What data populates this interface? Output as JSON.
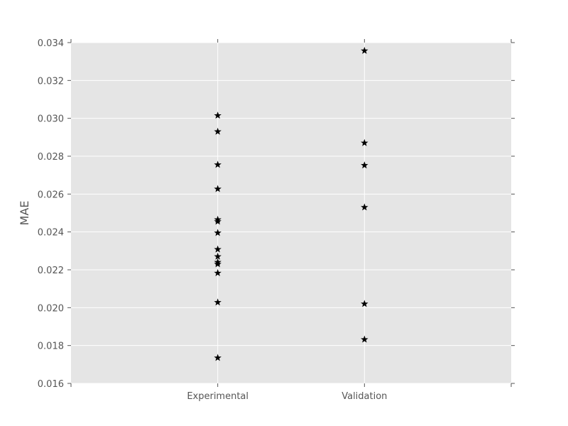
{
  "chart_data": {
    "type": "scatter",
    "title": "",
    "xlabel": "",
    "ylabel": "MAE",
    "categories": [
      "Experimental",
      "Validation"
    ],
    "xlim": [
      -1,
      2
    ],
    "ylim": [
      0.016,
      0.034
    ],
    "yticks": [
      "0.016",
      "0.018",
      "0.020",
      "0.022",
      "0.024",
      "0.026",
      "0.028",
      "0.030",
      "0.032",
      "0.034"
    ],
    "grid": true,
    "legend": "none",
    "marker": "star",
    "colors": {
      "marker": "#000000",
      "background": "#e5e5e5",
      "grid": "#ffffff",
      "text": "#555555"
    },
    "series": [
      {
        "category": "Experimental",
        "values": [
          0.03015,
          0.0293,
          0.02755,
          0.02627,
          0.02465,
          0.02455,
          0.02395,
          0.02308,
          0.0227,
          0.0224,
          0.0223,
          0.02183,
          0.02028,
          0.01735
        ]
      },
      {
        "category": "Validation",
        "values": [
          0.03357,
          0.0287,
          0.02752,
          0.0253,
          0.0202,
          0.01832
        ]
      }
    ]
  }
}
